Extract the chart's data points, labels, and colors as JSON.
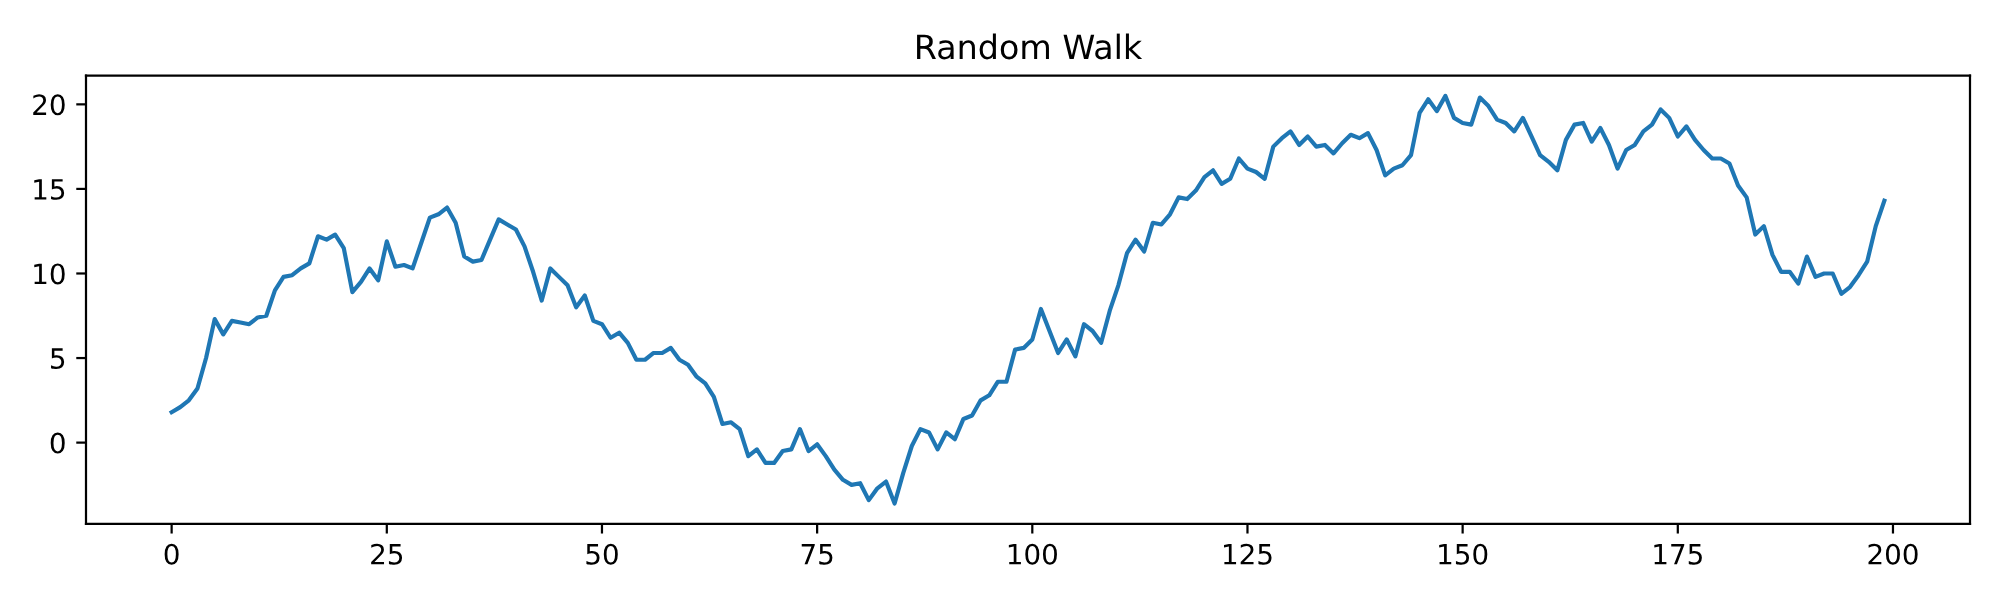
{
  "chart_data": {
    "type": "line",
    "title": "Random Walk",
    "x": [
      0,
      1,
      2,
      3,
      4,
      5,
      6,
      7,
      8,
      9,
      10,
      11,
      12,
      13,
      14,
      15,
      16,
      17,
      18,
      19,
      20,
      21,
      22,
      23,
      24,
      25,
      26,
      27,
      28,
      29,
      30,
      31,
      32,
      33,
      34,
      35,
      36,
      37,
      38,
      39,
      40,
      41,
      42,
      43,
      44,
      45,
      46,
      47,
      48,
      49,
      50,
      51,
      52,
      53,
      54,
      55,
      56,
      57,
      58,
      59,
      60,
      61,
      62,
      63,
      64,
      65,
      66,
      67,
      68,
      69,
      70,
      71,
      72,
      73,
      74,
      75,
      76,
      77,
      78,
      79,
      80,
      81,
      82,
      83,
      84,
      85,
      86,
      87,
      88,
      89,
      90,
      91,
      92,
      93,
      94,
      95,
      96,
      97,
      98,
      99,
      100,
      101,
      102,
      103,
      104,
      105,
      106,
      107,
      108,
      109,
      110,
      111,
      112,
      113,
      114,
      115,
      116,
      117,
      118,
      119,
      120,
      121,
      122,
      123,
      124,
      125,
      126,
      127,
      128,
      129,
      130,
      131,
      132,
      133,
      134,
      135,
      136,
      137,
      138,
      139,
      140,
      141,
      142,
      143,
      144,
      145,
      146,
      147,
      148,
      149,
      150,
      151,
      152,
      153,
      154,
      155,
      156,
      157,
      158,
      159,
      160,
      161,
      162,
      163,
      164,
      165,
      166,
      167,
      168,
      169,
      170,
      171,
      172,
      173,
      174,
      175,
      176,
      177,
      178,
      179,
      180,
      181,
      182,
      183,
      184,
      185,
      186,
      187,
      188,
      189,
      190,
      191,
      192,
      193,
      194,
      195,
      196,
      197,
      198,
      199
    ],
    "series": [
      {
        "color": "#1f77b4",
        "values": [
          1.8,
          2.1,
          2.5,
          3.2,
          5.0,
          7.3,
          6.4,
          7.2,
          7.1,
          7.0,
          7.4,
          7.5,
          9.0,
          9.8,
          9.9,
          10.3,
          10.6,
          12.2,
          12.0,
          12.3,
          11.5,
          8.9,
          9.5,
          10.3,
          9.6,
          11.9,
          10.4,
          10.5,
          10.3,
          11.8,
          13.3,
          13.5,
          13.9,
          13.0,
          11.0,
          10.7,
          10.8,
          12.0,
          13.2,
          12.9,
          12.6,
          11.6,
          10.1,
          8.4,
          10.3,
          9.8,
          9.3,
          8.0,
          8.7,
          7.2,
          7.0,
          6.2,
          6.5,
          5.9,
          4.9,
          4.9,
          5.3,
          5.3,
          5.6,
          4.9,
          4.6,
          3.9,
          3.5,
          2.7,
          1.1,
          1.2,
          0.8,
          -0.8,
          -0.4,
          -1.2,
          -1.2,
          -0.5,
          -0.4,
          0.8,
          -0.5,
          -0.1,
          -0.8,
          -1.6,
          -2.2,
          -2.5,
          -2.4,
          -3.4,
          -2.7,
          -2.3,
          -3.6,
          -1.8,
          -0.2,
          0.8,
          0.6,
          -0.4,
          0.6,
          0.2,
          1.4,
          1.6,
          2.5,
          2.8,
          3.6,
          3.6,
          5.5,
          5.6,
          6.1,
          7.9,
          6.6,
          5.3,
          6.1,
          5.1,
          7.0,
          6.6,
          5.9,
          7.8,
          9.3,
          11.2,
          12.0,
          11.3,
          13.0,
          12.9,
          13.5,
          14.5,
          14.4,
          14.9,
          15.7,
          16.1,
          15.3,
          15.6,
          16.8,
          16.2,
          16.0,
          15.6,
          17.5,
          18.0,
          18.4,
          17.6,
          18.1,
          17.5,
          17.6,
          17.1,
          17.7,
          18.2,
          18.0,
          18.3,
          17.3,
          15.8,
          16.2,
          16.4,
          17.0,
          19.5,
          20.3,
          19.6,
          20.5,
          19.2,
          18.9,
          18.8,
          20.4,
          19.9,
          19.1,
          18.9,
          18.4,
          19.2,
          18.1,
          17.0,
          16.6,
          16.1,
          17.9,
          18.8,
          18.9,
          17.8,
          18.6,
          17.6,
          16.2,
          17.3,
          17.6,
          18.4,
          18.8,
          19.7,
          19.2,
          18.1,
          18.7,
          17.9,
          17.3,
          16.8,
          16.8,
          16.5,
          15.2,
          14.5,
          12.3,
          12.8,
          11.1,
          10.1,
          10.1,
          9.4,
          11.0,
          9.8,
          10.0,
          10.0,
          8.8,
          9.2,
          9.9,
          10.7,
          12.8,
          14.3
        ]
      }
    ],
    "xlim": [
      -9.95,
      208.95
    ],
    "xticks": [
      0,
      25,
      50,
      75,
      100,
      125,
      150,
      175,
      200
    ],
    "ylim": [
      -4.8,
      21.7
    ],
    "yticks": [
      0,
      5,
      10,
      15,
      20
    ],
    "grid": false
  }
}
